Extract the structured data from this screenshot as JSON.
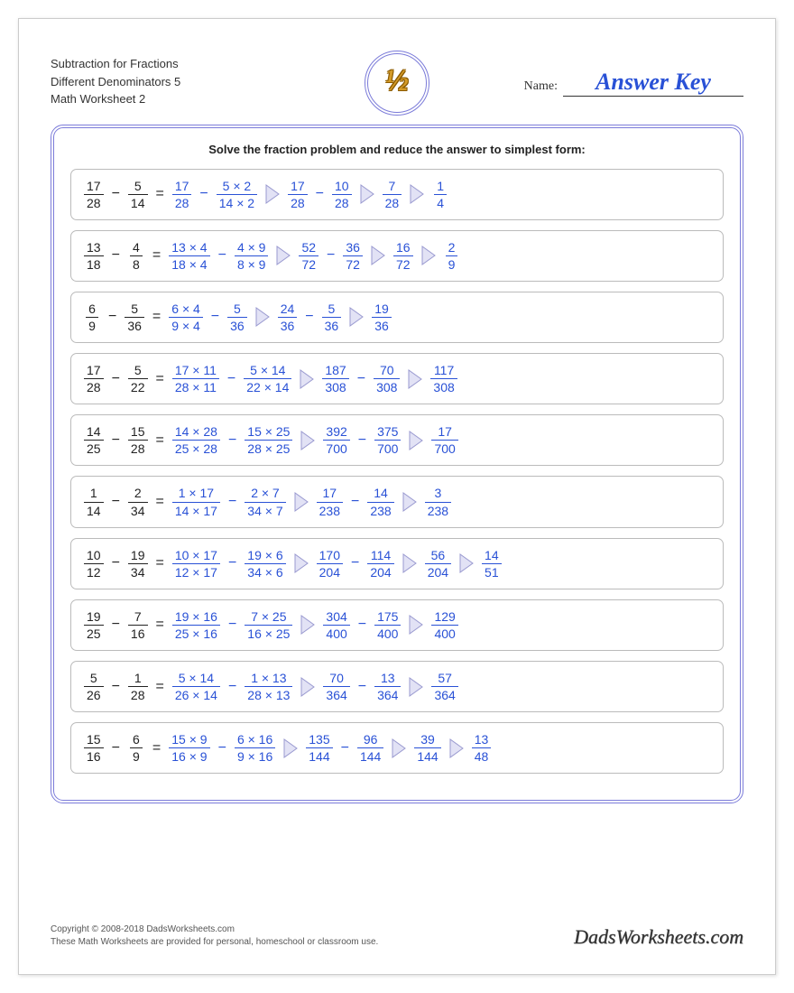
{
  "header": {
    "title_line1": "Subtraction for Fractions",
    "title_line2": "Different Denominators 5",
    "title_line3": "Math Worksheet 2",
    "logo_text": "½",
    "name_label": "Name:",
    "answer_key": "Answer Key"
  },
  "colors": {
    "problem_text": "#222222",
    "answer_text": "#2951d6",
    "frame_border": "#7b7bd9",
    "arrow_fill": "#e2e2f5",
    "arrow_stroke": "#9a9ad0"
  },
  "instructions": "Solve the fraction problem and reduce the answer to simplest form:",
  "problems": [
    {
      "lhs": [
        {
          "n": "17",
          "d": "28"
        },
        {
          "n": "5",
          "d": "14"
        }
      ],
      "steps": [
        [
          {
            "n": "17",
            "d": "28"
          },
          {
            "n": "5 × 2",
            "d": "14 × 2"
          }
        ],
        [
          {
            "n": "17",
            "d": "28"
          },
          {
            "n": "10",
            "d": "28"
          }
        ],
        [
          {
            "n": "7",
            "d": "28"
          }
        ],
        [
          {
            "n": "1",
            "d": "4"
          }
        ]
      ]
    },
    {
      "lhs": [
        {
          "n": "13",
          "d": "18"
        },
        {
          "n": "4",
          "d": "8"
        }
      ],
      "steps": [
        [
          {
            "n": "13 × 4",
            "d": "18 × 4"
          },
          {
            "n": "4 × 9",
            "d": "8 × 9"
          }
        ],
        [
          {
            "n": "52",
            "d": "72"
          },
          {
            "n": "36",
            "d": "72"
          }
        ],
        [
          {
            "n": "16",
            "d": "72"
          }
        ],
        [
          {
            "n": "2",
            "d": "9"
          }
        ]
      ]
    },
    {
      "lhs": [
        {
          "n": "6",
          "d": "9"
        },
        {
          "n": "5",
          "d": "36"
        }
      ],
      "steps": [
        [
          {
            "n": "6 × 4",
            "d": "9 × 4"
          },
          {
            "n": "5",
            "d": "36"
          }
        ],
        [
          {
            "n": "24",
            "d": "36"
          },
          {
            "n": "5",
            "d": "36"
          }
        ],
        [
          {
            "n": "19",
            "d": "36"
          }
        ]
      ]
    },
    {
      "lhs": [
        {
          "n": "17",
          "d": "28"
        },
        {
          "n": "5",
          "d": "22"
        }
      ],
      "steps": [
        [
          {
            "n": "17 × 11",
            "d": "28 × 11"
          },
          {
            "n": "5 × 14",
            "d": "22 × 14"
          }
        ],
        [
          {
            "n": "187",
            "d": "308"
          },
          {
            "n": "70",
            "d": "308"
          }
        ],
        [
          {
            "n": "117",
            "d": "308"
          }
        ]
      ]
    },
    {
      "lhs": [
        {
          "n": "14",
          "d": "25"
        },
        {
          "n": "15",
          "d": "28"
        }
      ],
      "steps": [
        [
          {
            "n": "14 × 28",
            "d": "25 × 28"
          },
          {
            "n": "15 × 25",
            "d": "28 × 25"
          }
        ],
        [
          {
            "n": "392",
            "d": "700"
          },
          {
            "n": "375",
            "d": "700"
          }
        ],
        [
          {
            "n": "17",
            "d": "700"
          }
        ]
      ]
    },
    {
      "lhs": [
        {
          "n": "1",
          "d": "14"
        },
        {
          "n": "2",
          "d": "34"
        }
      ],
      "steps": [
        [
          {
            "n": "1 × 17",
            "d": "14 × 17"
          },
          {
            "n": "2 × 7",
            "d": "34 × 7"
          }
        ],
        [
          {
            "n": "17",
            "d": "238"
          },
          {
            "n": "14",
            "d": "238"
          }
        ],
        [
          {
            "n": "3",
            "d": "238"
          }
        ]
      ]
    },
    {
      "lhs": [
        {
          "n": "10",
          "d": "12"
        },
        {
          "n": "19",
          "d": "34"
        }
      ],
      "steps": [
        [
          {
            "n": "10 × 17",
            "d": "12 × 17"
          },
          {
            "n": "19 × 6",
            "d": "34 × 6"
          }
        ],
        [
          {
            "n": "170",
            "d": "204"
          },
          {
            "n": "114",
            "d": "204"
          }
        ],
        [
          {
            "n": "56",
            "d": "204"
          }
        ],
        [
          {
            "n": "14",
            "d": "51"
          }
        ]
      ]
    },
    {
      "lhs": [
        {
          "n": "19",
          "d": "25"
        },
        {
          "n": "7",
          "d": "16"
        }
      ],
      "steps": [
        [
          {
            "n": "19 × 16",
            "d": "25 × 16"
          },
          {
            "n": "7 × 25",
            "d": "16 × 25"
          }
        ],
        [
          {
            "n": "304",
            "d": "400"
          },
          {
            "n": "175",
            "d": "400"
          }
        ],
        [
          {
            "n": "129",
            "d": "400"
          }
        ]
      ]
    },
    {
      "lhs": [
        {
          "n": "5",
          "d": "26"
        },
        {
          "n": "1",
          "d": "28"
        }
      ],
      "steps": [
        [
          {
            "n": "5 × 14",
            "d": "26 × 14"
          },
          {
            "n": "1 × 13",
            "d": "28 × 13"
          }
        ],
        [
          {
            "n": "70",
            "d": "364"
          },
          {
            "n": "13",
            "d": "364"
          }
        ],
        [
          {
            "n": "57",
            "d": "364"
          }
        ]
      ]
    },
    {
      "lhs": [
        {
          "n": "15",
          "d": "16"
        },
        {
          "n": "6",
          "d": "9"
        }
      ],
      "steps": [
        [
          {
            "n": "15 × 9",
            "d": "16 × 9"
          },
          {
            "n": "6 × 16",
            "d": "9 × 16"
          }
        ],
        [
          {
            "n": "135",
            "d": "144"
          },
          {
            "n": "96",
            "d": "144"
          }
        ],
        [
          {
            "n": "39",
            "d": "144"
          }
        ],
        [
          {
            "n": "13",
            "d": "48"
          }
        ]
      ]
    }
  ],
  "footer": {
    "copyright": "Copyright © 2008-2018 DadsWorksheets.com",
    "disclaimer": "These Math Worksheets are provided for personal, homeschool or classroom use.",
    "brand": "DadsWorksheets.com"
  }
}
